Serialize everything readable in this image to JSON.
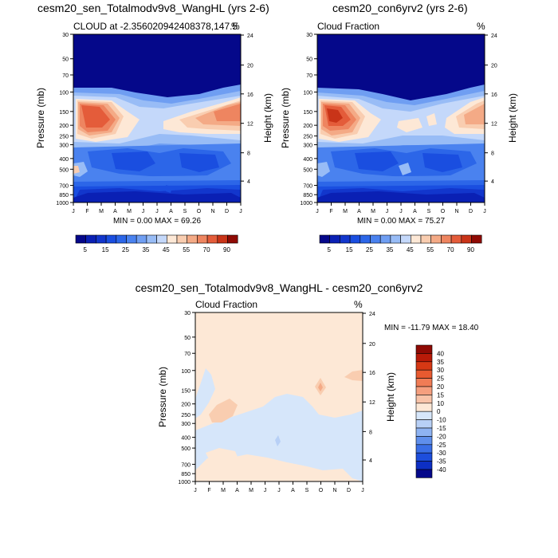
{
  "chart_data": [
    {
      "type": "heatmap",
      "title": "cesm20_sen_Totalmodv9v8_WangHL (yrs 2-6)",
      "left_string": "CLOUD at -2.356020942408378,147.5",
      "right_string": "%",
      "ylabel": "Pressure (mb)",
      "y2label": "Height (km)",
      "stats": "MIN =   0.00 MAX =  69.26",
      "x_ticks": [
        "J",
        "F",
        "M",
        "A",
        "M",
        "J",
        "J",
        "A",
        "S",
        "O",
        "N",
        "D",
        "J"
      ],
      "y_ticks": [
        "30",
        "50",
        "70",
        "100",
        "150",
        "200",
        "250",
        "300",
        "400",
        "500",
        "700",
        "850",
        "1000"
      ],
      "y2_ticks": [
        "24",
        "20",
        "16",
        "12",
        "8",
        "4"
      ],
      "colorbar_labels": [
        "5",
        "15",
        "25",
        "35",
        "45",
        "55",
        "70",
        "90"
      ],
      "min": 0.0,
      "max": 69.26
    },
    {
      "type": "heatmap",
      "title": "cesm20_con6yrv2 (yrs 2-6)",
      "left_string": "Cloud Fraction",
      "right_string": "%",
      "ylabel": "Pressure (mb)",
      "y2label": "Height (km)",
      "stats": "MIN =   0.00 MAX =  75.27",
      "x_ticks": [
        "J",
        "F",
        "M",
        "A",
        "M",
        "J",
        "J",
        "A",
        "S",
        "O",
        "N",
        "D",
        "J"
      ],
      "y_ticks": [
        "30",
        "50",
        "70",
        "100",
        "150",
        "200",
        "250",
        "300",
        "400",
        "500",
        "700",
        "850",
        "1000"
      ],
      "y2_ticks": [
        "24",
        "20",
        "16",
        "12",
        "8",
        "4"
      ],
      "colorbar_labels": [
        "5",
        "15",
        "25",
        "35",
        "45",
        "55",
        "70",
        "90"
      ],
      "min": 0.0,
      "max": 75.27
    },
    {
      "type": "heatmap",
      "title": "cesm20_sen_Totalmodv9v8_WangHL - cesm20_con6yrv2",
      "left_string": "Cloud Fraction",
      "right_string": "%",
      "ylabel": "Pressure (mb)",
      "y2label": "Height (km)",
      "stats": "MIN = -11.79 MAX =  18.40",
      "x_ticks": [
        "J",
        "F",
        "M",
        "A",
        "M",
        "J",
        "J",
        "A",
        "S",
        "O",
        "N",
        "D",
        "J"
      ],
      "y_ticks": [
        "30",
        "50",
        "70",
        "100",
        "150",
        "200",
        "250",
        "300",
        "400",
        "500",
        "700",
        "850",
        "1000"
      ],
      "y2_ticks": [
        "24",
        "20",
        "16",
        "12",
        "8",
        "4"
      ],
      "colorbar_labels": [
        "40",
        "35",
        "30",
        "25",
        "20",
        "15",
        "10",
        "0",
        "-10",
        "-15",
        "-20",
        "-25",
        "-30",
        "-35",
        "-40"
      ],
      "min": -11.79,
      "max": 18.4
    }
  ],
  "palette": {
    "cloud": [
      "#05088a",
      "#0a20b4",
      "#1236cc",
      "#1a4ee0",
      "#2c66e8",
      "#4a82ef",
      "#6f9ef2",
      "#98bcf6",
      "#c4d8fa",
      "#fde8d6",
      "#f9cdb0",
      "#f4aa86",
      "#ee8560",
      "#e45c3a",
      "#c93418",
      "#8f0a04"
    ],
    "diff": [
      "#8f0a04",
      "#b81a08",
      "#d63814",
      "#e85a30",
      "#f07c55",
      "#f59f7e",
      "#f8c3a8",
      "#fde8d6",
      "#d6e6fa",
      "#b8d0f6",
      "#8eb3f2",
      "#5f8fec",
      "#3a6ee6",
      "#1d4edc",
      "#0d2fc4",
      "#05088a"
    ],
    "frame": "#000000"
  }
}
